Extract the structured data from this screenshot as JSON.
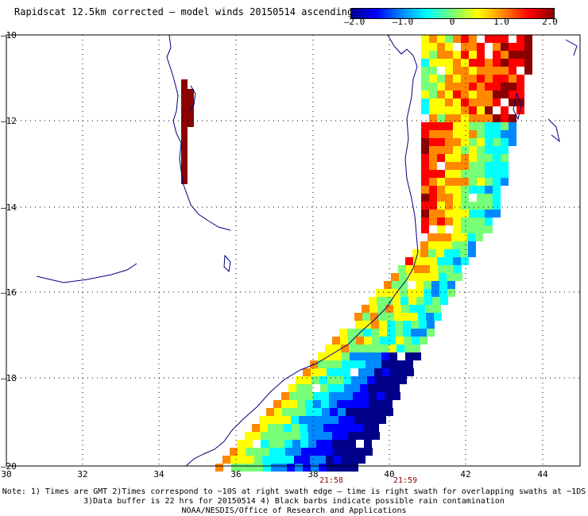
{
  "title": "Rapidscat 12.5km corrected – model winds 20150514 ascending",
  "colorbar": {
    "labels": [
      "–2.0",
      "–1.0",
      "0",
      "1.0",
      "2.0"
    ],
    "stops": [
      "#00008b",
      "#0000ff",
      "#0088ff",
      "#00ffff",
      "#77ff77",
      "#ffff00",
      "#ff8800",
      "#ff0000",
      "#8b0000"
    ]
  },
  "axes": {
    "x_ticks": [
      "30",
      "32",
      "34",
      "36",
      "38",
      "40",
      "42",
      "44"
    ],
    "y_ticks": [
      "–10",
      "–12",
      "–14",
      "–16",
      "–18",
      "–20"
    ]
  },
  "times": [
    "21:58",
    "21:59"
  ],
  "notes": [
    "Note: 1) Times are GMT 2)Times correspond to ~10S at right swath edge – time is right swath for overlapping swaths at ~1DS",
    "3)Data buffer is 22 hrs for 20150514 4) Black barbs indicate possible rain contamination",
    "NOAA/NESDIS/Office of Research and Applications"
  ],
  "colors": {
    "coast": "#000080",
    "grid": "#000000",
    "time_label": "#8b0000"
  }
}
